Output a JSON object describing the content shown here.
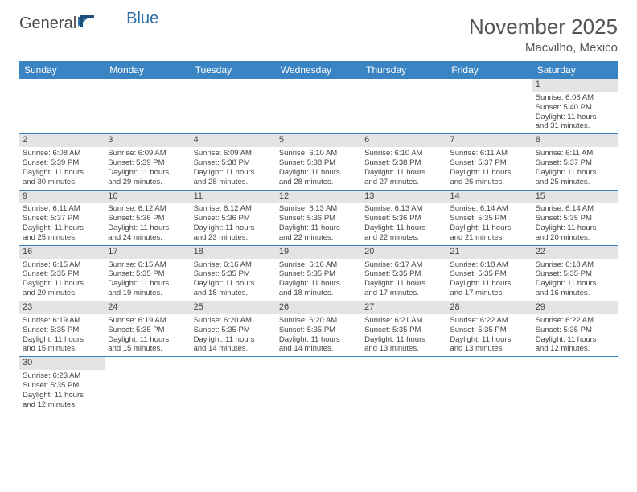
{
  "logo": {
    "text1": "General",
    "text2": "Blue"
  },
  "title": "November 2025",
  "location": "Macvilho, Mexico",
  "colors": {
    "header_bg": "#3b84c4",
    "header_text": "#ffffff",
    "daynum_bg": "#e4e4e4",
    "row_divider": "#3b84c4",
    "logo_gray": "#4a4a4a",
    "logo_blue": "#2f6fa7"
  },
  "weekdays": [
    "Sunday",
    "Monday",
    "Tuesday",
    "Wednesday",
    "Thursday",
    "Friday",
    "Saturday"
  ],
  "weeks": [
    [
      null,
      null,
      null,
      null,
      null,
      null,
      {
        "n": "1",
        "sunrise": "6:08 AM",
        "sunset": "5:40 PM",
        "dh": "11",
        "dm": "31"
      }
    ],
    [
      {
        "n": "2",
        "sunrise": "6:08 AM",
        "sunset": "5:39 PM",
        "dh": "11",
        "dm": "30"
      },
      {
        "n": "3",
        "sunrise": "6:09 AM",
        "sunset": "5:39 PM",
        "dh": "11",
        "dm": "29"
      },
      {
        "n": "4",
        "sunrise": "6:09 AM",
        "sunset": "5:38 PM",
        "dh": "11",
        "dm": "28"
      },
      {
        "n": "5",
        "sunrise": "6:10 AM",
        "sunset": "5:38 PM",
        "dh": "11",
        "dm": "28"
      },
      {
        "n": "6",
        "sunrise": "6:10 AM",
        "sunset": "5:38 PM",
        "dh": "11",
        "dm": "27"
      },
      {
        "n": "7",
        "sunrise": "6:11 AM",
        "sunset": "5:37 PM",
        "dh": "11",
        "dm": "26"
      },
      {
        "n": "8",
        "sunrise": "6:11 AM",
        "sunset": "5:37 PM",
        "dh": "11",
        "dm": "25"
      }
    ],
    [
      {
        "n": "9",
        "sunrise": "6:11 AM",
        "sunset": "5:37 PM",
        "dh": "11",
        "dm": "25"
      },
      {
        "n": "10",
        "sunrise": "6:12 AM",
        "sunset": "5:36 PM",
        "dh": "11",
        "dm": "24"
      },
      {
        "n": "11",
        "sunrise": "6:12 AM",
        "sunset": "5:36 PM",
        "dh": "11",
        "dm": "23"
      },
      {
        "n": "12",
        "sunrise": "6:13 AM",
        "sunset": "5:36 PM",
        "dh": "11",
        "dm": "22"
      },
      {
        "n": "13",
        "sunrise": "6:13 AM",
        "sunset": "5:36 PM",
        "dh": "11",
        "dm": "22"
      },
      {
        "n": "14",
        "sunrise": "6:14 AM",
        "sunset": "5:35 PM",
        "dh": "11",
        "dm": "21"
      },
      {
        "n": "15",
        "sunrise": "6:14 AM",
        "sunset": "5:35 PM",
        "dh": "11",
        "dm": "20"
      }
    ],
    [
      {
        "n": "16",
        "sunrise": "6:15 AM",
        "sunset": "5:35 PM",
        "dh": "11",
        "dm": "20"
      },
      {
        "n": "17",
        "sunrise": "6:15 AM",
        "sunset": "5:35 PM",
        "dh": "11",
        "dm": "19"
      },
      {
        "n": "18",
        "sunrise": "6:16 AM",
        "sunset": "5:35 PM",
        "dh": "11",
        "dm": "18"
      },
      {
        "n": "19",
        "sunrise": "6:16 AM",
        "sunset": "5:35 PM",
        "dh": "11",
        "dm": "18"
      },
      {
        "n": "20",
        "sunrise": "6:17 AM",
        "sunset": "5:35 PM",
        "dh": "11",
        "dm": "17"
      },
      {
        "n": "21",
        "sunrise": "6:18 AM",
        "sunset": "5:35 PM",
        "dh": "11",
        "dm": "17"
      },
      {
        "n": "22",
        "sunrise": "6:18 AM",
        "sunset": "5:35 PM",
        "dh": "11",
        "dm": "16"
      }
    ],
    [
      {
        "n": "23",
        "sunrise": "6:19 AM",
        "sunset": "5:35 PM",
        "dh": "11",
        "dm": "15"
      },
      {
        "n": "24",
        "sunrise": "6:19 AM",
        "sunset": "5:35 PM",
        "dh": "11",
        "dm": "15"
      },
      {
        "n": "25",
        "sunrise": "6:20 AM",
        "sunset": "5:35 PM",
        "dh": "11",
        "dm": "14"
      },
      {
        "n": "26",
        "sunrise": "6:20 AM",
        "sunset": "5:35 PM",
        "dh": "11",
        "dm": "14"
      },
      {
        "n": "27",
        "sunrise": "6:21 AM",
        "sunset": "5:35 PM",
        "dh": "11",
        "dm": "13"
      },
      {
        "n": "28",
        "sunrise": "6:22 AM",
        "sunset": "5:35 PM",
        "dh": "11",
        "dm": "13"
      },
      {
        "n": "29",
        "sunrise": "6:22 AM",
        "sunset": "5:35 PM",
        "dh": "11",
        "dm": "12"
      }
    ],
    [
      {
        "n": "30",
        "sunrise": "6:23 AM",
        "sunset": "5:35 PM",
        "dh": "11",
        "dm": "12"
      },
      null,
      null,
      null,
      null,
      null,
      null
    ]
  ],
  "labels": {
    "sunrise": "Sunrise:",
    "sunset": "Sunset:",
    "daylight_prefix": "Daylight:",
    "hours_word": "hours",
    "and_word": "and",
    "minutes_word": "minutes."
  }
}
